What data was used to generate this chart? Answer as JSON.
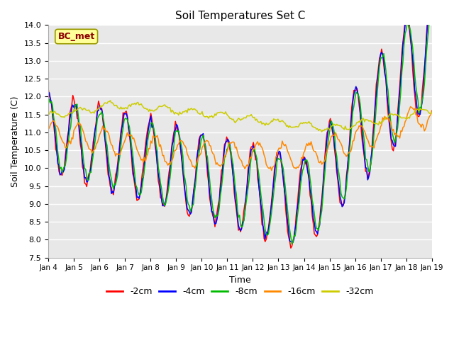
{
  "title": "Soil Temperatures Set C",
  "xlabel": "Time",
  "ylabel": "Soil Temperature (C)",
  "ylim": [
    7.5,
    14.0
  ],
  "yticks": [
    7.5,
    8.0,
    8.5,
    9.0,
    9.5,
    10.0,
    10.5,
    11.0,
    11.5,
    12.0,
    12.5,
    13.0,
    13.5,
    14.0
  ],
  "xtick_labels": [
    "Jan 4",
    "Jan 5",
    "Jan 6",
    "Jan 7",
    "Jan 8",
    "Jan 9",
    "Jan 10",
    "Jan 11",
    "Jan 12",
    "Jan 13",
    "Jan 14",
    "Jan 15",
    "Jan 16",
    "Jan 17",
    "Jan 18",
    "Jan 19"
  ],
  "annotation": "BC_met",
  "annotation_color": "#8B0000",
  "annotation_bg": "#FFFF99",
  "annotation_border": "#999900",
  "series_colors": [
    "#ff0000",
    "#0000ff",
    "#00bb00",
    "#ff8800",
    "#cccc00"
  ],
  "series_labels": [
    "-2cm",
    "-4cm",
    "-8cm",
    "-16cm",
    "-32cm"
  ],
  "bg_color": "#e8e8e8",
  "grid_color": "#ffffff"
}
